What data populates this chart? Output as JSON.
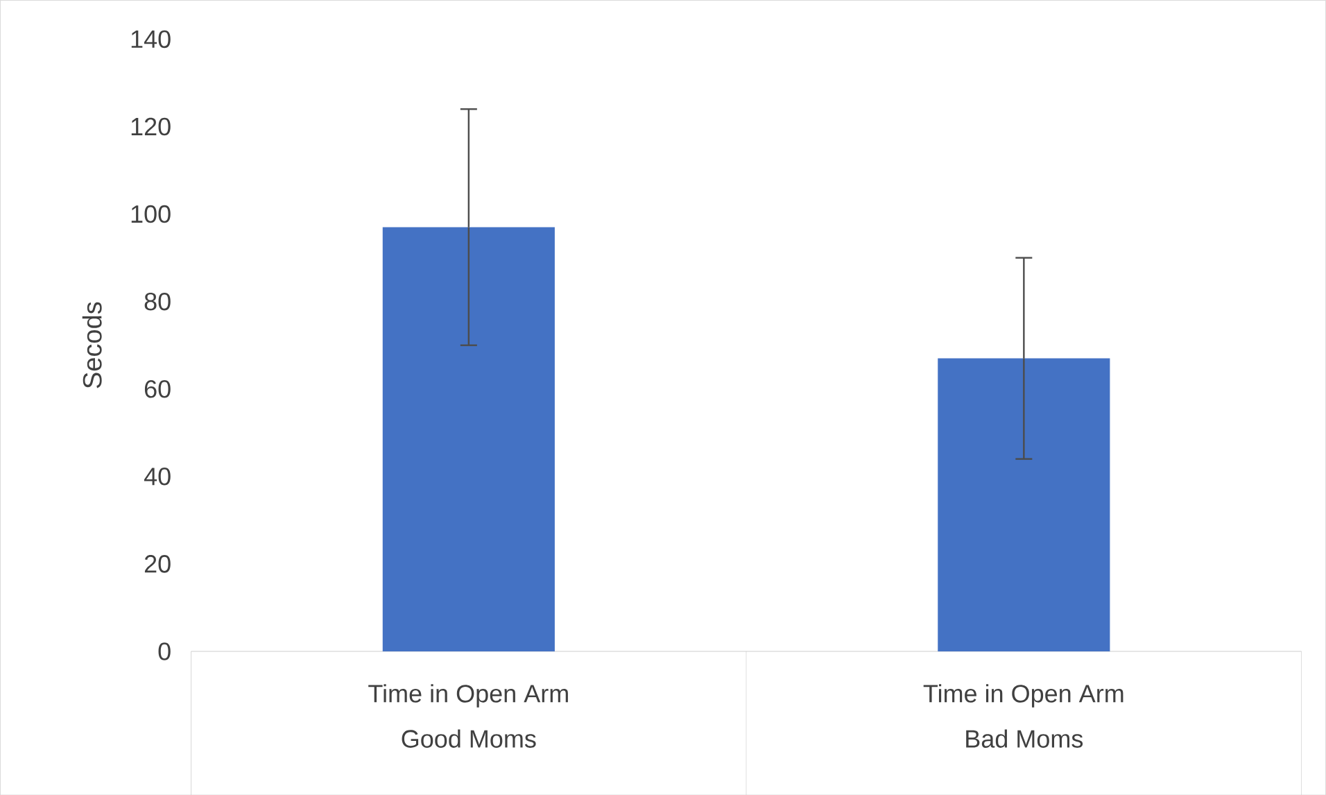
{
  "chart_data": {
    "type": "bar",
    "ylabel": "Secods",
    "categories": [
      "Good Moms",
      "Bad Moms"
    ],
    "values": [
      97,
      67
    ],
    "color": "#4472c4",
    "errors": [
      27,
      23
    ],
    "annotations": [
      "Time in Open Arm",
      "Time in Open Arm"
    ],
    "ylim": [
      0,
      140
    ],
    "yticks": [
      0,
      20,
      40,
      60,
      80,
      100,
      120,
      140
    ]
  }
}
